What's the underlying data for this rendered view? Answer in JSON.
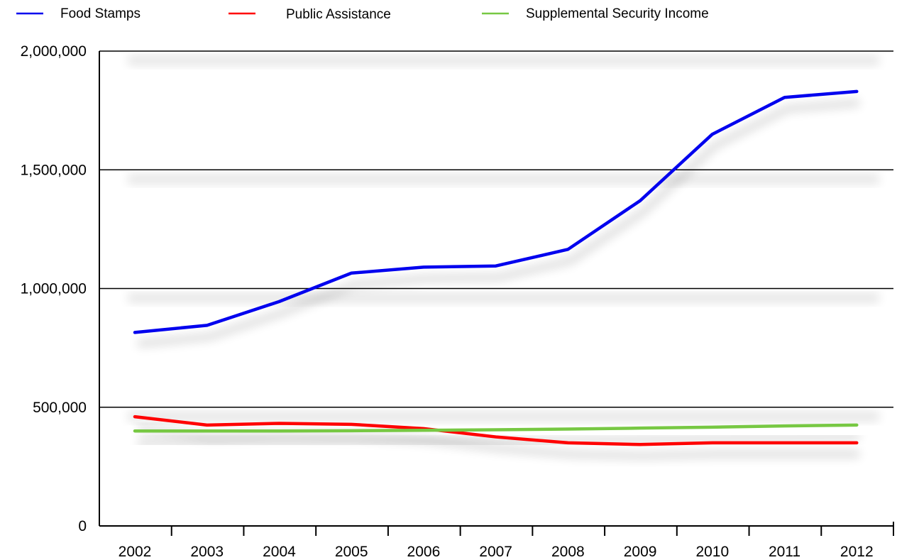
{
  "chart_data": {
    "type": "line",
    "title": "",
    "xlabel": "",
    "ylabel": "",
    "categories": [
      "2002",
      "2003",
      "2004",
      "2005",
      "2006",
      "2007",
      "2008",
      "2009",
      "2010",
      "2011",
      "2012"
    ],
    "series": [
      {
        "name": "Food Stamps",
        "color": "#0000ee",
        "values": [
          815000,
          845000,
          945000,
          1065000,
          1090000,
          1095000,
          1165000,
          1370000,
          1650000,
          1805000,
          1830000
        ]
      },
      {
        "name": "Public Assistance",
        "color": "#ff0000",
        "values": [
          460000,
          425000,
          432000,
          428000,
          410000,
          375000,
          350000,
          343000,
          350000,
          350000,
          350000
        ]
      },
      {
        "name": "Supplemental Security Income",
        "color": "#77c843",
        "values": [
          400000,
          400000,
          400000,
          401000,
          403000,
          405000,
          408000,
          412000,
          416000,
          421000,
          425000
        ]
      }
    ],
    "yticks": [
      0,
      500000,
      1000000,
      1500000,
      2000000
    ],
    "ytick_labels": [
      "0",
      "500,000",
      "1,000,000",
      "1,500,000",
      "2,000,000"
    ],
    "ylim": [
      0,
      2000000
    ],
    "grid": true,
    "legend_position": "top"
  }
}
